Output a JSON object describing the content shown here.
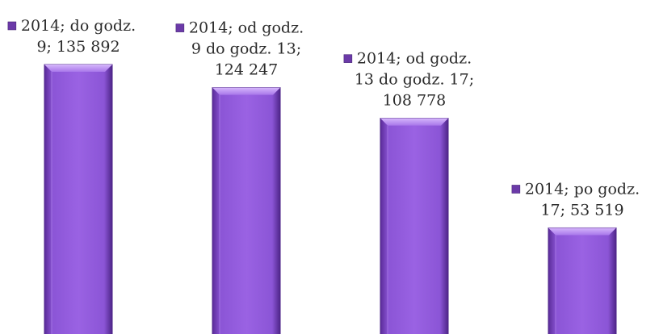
{
  "chart_data": {
    "type": "bar",
    "categories": [
      "do godz. 9",
      "od godz. 9 do godz. 13",
      "od godz. 13 do godz. 17",
      "po godz. 17"
    ],
    "series": [
      {
        "name": "2014",
        "values": [
          135892,
          124247,
          108778,
          53519
        ]
      }
    ],
    "data_labels": [
      [
        "2014; do godz.",
        "9; 135 892"
      ],
      [
        "2014; od godz.",
        "9 do godz. 13;",
        "124 247"
      ],
      [
        "2014; od godz.",
        "13 do godz. 17;",
        "108 778"
      ],
      [
        "2014; po godz.",
        "17; 53 519"
      ]
    ],
    "title": "",
    "xlabel": "",
    "ylabel": "",
    "ylim": [
      0,
      160000
    ],
    "grid": false,
    "colors": {
      "bar_fill": "#8a4fd3",
      "bar_light": "#c49cf2",
      "bar_dark": "#4e2588",
      "marker": "#6b3aa8",
      "label_text": "#2b2b2b"
    }
  }
}
